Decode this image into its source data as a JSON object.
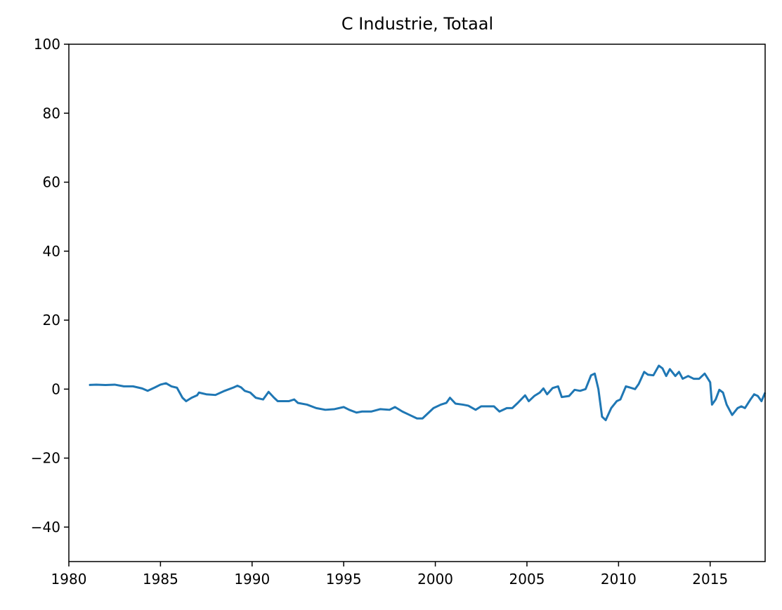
{
  "chart_data": {
    "type": "line",
    "title": "C Industrie, Totaal",
    "xlim": [
      1980,
      2018
    ],
    "xticks": [
      1980,
      1985,
      1990,
      1995,
      2000,
      2005,
      2010,
      2015
    ],
    "ylim": [
      -50,
      100
    ],
    "yticks": [
      {
        "value": -40,
        "label": "−40"
      },
      {
        "value": -20,
        "label": "−20"
      },
      0,
      20,
      40,
      60,
      80,
      100
    ],
    "grid": false,
    "series": [
      {
        "color": "#1f77b4",
        "x": [
          1981.1,
          1981.5,
          1982,
          1982.5,
          1983,
          1983.5,
          1984,
          1984.3,
          1984.7,
          1985,
          1985.3,
          1985.6,
          1985.9,
          1986.2,
          1986.4,
          1986.7,
          1987,
          1987.1,
          1987.5,
          1988,
          1988.5,
          1989,
          1989.2,
          1989.4,
          1989.6,
          1989.9,
          1990.2,
          1990.6,
          1990.9,
          1991.2,
          1991.4,
          1992,
          1992.3,
          1992.5,
          1993,
          1993.5,
          1994,
          1994.5,
          1995,
          1995.3,
          1995.7,
          1996,
          1996.5,
          1997,
          1997.5,
          1997.8,
          1998.2,
          1998.6,
          1999,
          1999.3,
          1999.6,
          1999.9,
          2000.3,
          2000.6,
          2000.8,
          2001.1,
          2001.5,
          2001.8,
          2002.2,
          2002.5,
          2002.8,
          2003.2,
          2003.5,
          2003.9,
          2004.2,
          2004.5,
          2004.9,
          2005.1,
          2005.4,
          2005.7,
          2005.9,
          2006.1,
          2006.4,
          2006.7,
          2006.9,
          2007.3,
          2007.6,
          2007.9,
          2008.2,
          2008.5,
          2008.7,
          2008.9,
          2009.1,
          2009.3,
          2009.6,
          2009.9,
          2010.1,
          2010.4,
          2010.6,
          2010.9,
          2011.1,
          2011.4,
          2011.6,
          2011.9,
          2012.2,
          2012.4,
          2012.6,
          2012.8,
          2013.1,
          2013.3,
          2013.5,
          2013.8,
          2014.1,
          2014.4,
          2014.7,
          2015,
          2015.1,
          2015.3,
          2015.5,
          2015.7,
          2015.9,
          2016.2,
          2016.5,
          2016.7,
          2016.9,
          2017.2,
          2017.4,
          2017.6,
          2017.8,
          2018
        ],
        "values": [
          1.2,
          1.3,
          1.2,
          1.3,
          0.8,
          0.8,
          0.2,
          -0.5,
          0.5,
          1.3,
          1.7,
          0.8,
          0.4,
          -2.5,
          -3.5,
          -2.5,
          -1.8,
          -1,
          -1.5,
          -1.7,
          -0.5,
          0.5,
          1,
          0.5,
          -0.5,
          -1,
          -2.5,
          -3,
          -0.8,
          -2.5,
          -3.5,
          -3.5,
          -3,
          -4,
          -4.5,
          -5.5,
          -6,
          -5.8,
          -5.2,
          -6,
          -6.8,
          -6.5,
          -6.5,
          -5.8,
          -6,
          -5.2,
          -6.5,
          -7.5,
          -8.5,
          -8.5,
          -7,
          -5.5,
          -4.5,
          -4,
          -2.5,
          -4.2,
          -4.5,
          -4.8,
          -6,
          -5,
          -5,
          -5,
          -6.5,
          -5.5,
          -5.5,
          -4,
          -1.8,
          -3.5,
          -2,
          -1,
          0.2,
          -1.5,
          0.3,
          0.8,
          -2.3,
          -2,
          -0.2,
          -0.5,
          0,
          4,
          4.5,
          0,
          -8,
          -9,
          -5.5,
          -3.5,
          -3,
          0.8,
          0.5,
          0,
          1.5,
          5,
          4.2,
          4,
          6.8,
          6,
          3.8,
          5.8,
          3.8,
          5,
          3,
          3.8,
          3,
          3,
          4.5,
          2,
          -4.5,
          -3,
          -0.2,
          -1,
          -4.5,
          -7.5,
          -5.5,
          -5,
          -5.5,
          -3,
          -1.5,
          -2,
          -3.5,
          -1
        ]
      }
    ]
  }
}
